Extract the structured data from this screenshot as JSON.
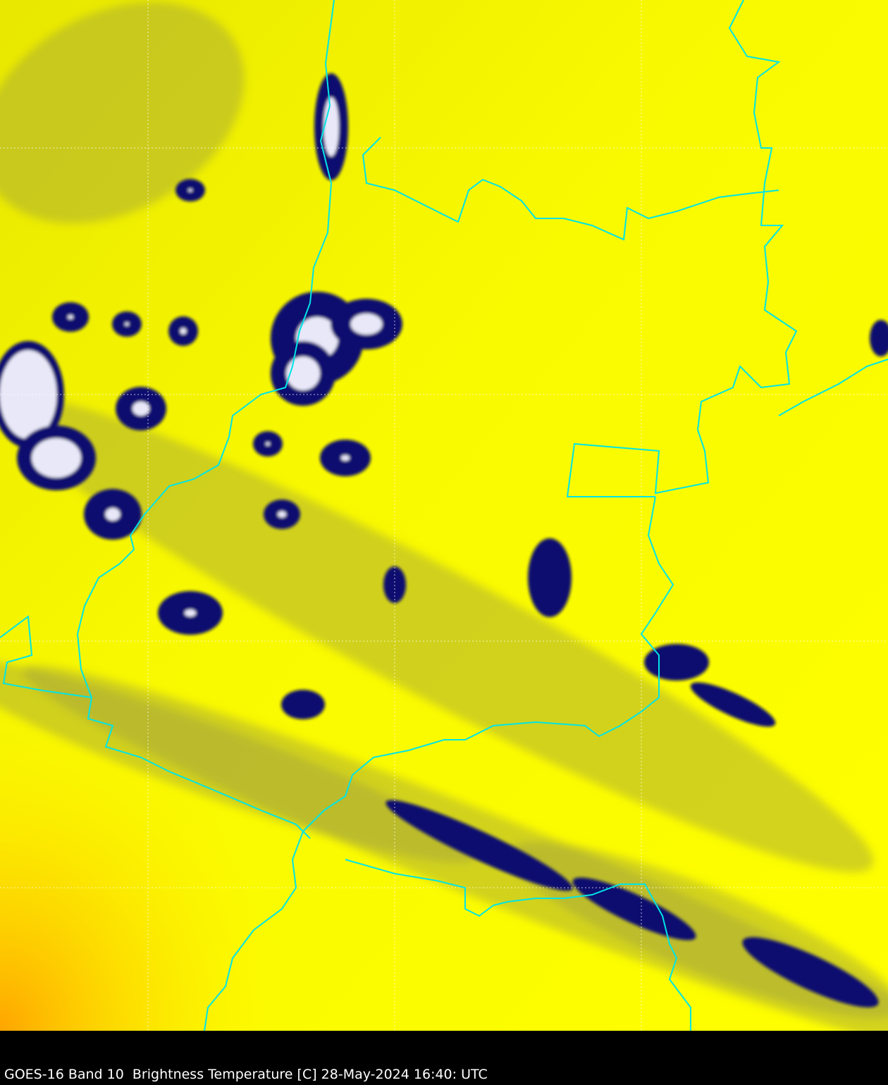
{
  "caption": "GOES-16 Band 10  Brightness Temperature [C] 28-May-2024 16:40: UTC",
  "colors": {
    "background_warm": "#ffff00",
    "background_hot": "#ffa500",
    "cloud_cold": "#101070",
    "cloud_coldest": "#e8e8f8",
    "borders": "#00e5e5",
    "gridlines": "#ffffff",
    "caption_bar": "#000000"
  },
  "map": {
    "product": "satellite brightness temperature imagery",
    "gridlines": true,
    "borders": true
  }
}
